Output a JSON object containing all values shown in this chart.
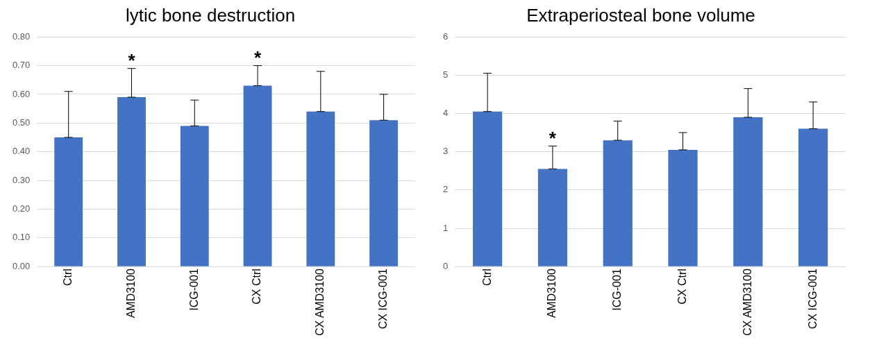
{
  "chart_data": [
    {
      "type": "bar",
      "title": "lytic bone destruction",
      "categories": [
        "Ctrl",
        "AMD3100",
        "ICG-001",
        "CX Ctrl",
        "CX AMD3100",
        "CX ICG-001"
      ],
      "values": [
        0.45,
        0.59,
        0.49,
        0.63,
        0.54,
        0.51
      ],
      "errors": [
        [
          0.45,
          0.61
        ],
        [
          0.59,
          0.69
        ],
        [
          0.49,
          0.58
        ],
        [
          0.63,
          0.7
        ],
        [
          0.54,
          0.68
        ],
        [
          0.51,
          0.6
        ]
      ],
      "color": "#4472c4",
      "ylim": [
        0,
        0.8
      ],
      "yticks": [
        {
          "value": 0,
          "label": "0.00"
        },
        {
          "value": 0.1,
          "label": "0.10"
        },
        {
          "value": 0.2,
          "label": "0.20"
        },
        {
          "value": 0.3,
          "label": "0.30"
        },
        {
          "value": 0.4,
          "label": "0.40"
        },
        {
          "value": 0.5,
          "label": "0.50"
        },
        {
          "value": 0.6,
          "label": "0.60"
        },
        {
          "value": 0.7,
          "label": "0.70"
        },
        {
          "value": 0.8,
          "label": "0.80"
        }
      ],
      "grid": "y",
      "annotations": [
        {
          "text": "*",
          "x": "AMD3100",
          "y": 0.69
        },
        {
          "text": "*",
          "x": "CX Ctrl",
          "y": 0.7
        }
      ]
    },
    {
      "type": "bar",
      "title": "Extraperiosteal bone volume",
      "categories": [
        "Ctrl",
        "AMD3100",
        "ICG-001",
        "CX Ctrl",
        "CX AMD3100",
        "CX ICG-001"
      ],
      "values": [
        4.05,
        2.55,
        3.3,
        3.05,
        3.9,
        3.6
      ],
      "errors": [
        [
          4.05,
          5.05
        ],
        [
          2.55,
          3.15
        ],
        [
          3.3,
          3.8
        ],
        [
          3.05,
          3.5
        ],
        [
          3.9,
          4.65
        ],
        [
          3.6,
          4.3
        ]
      ],
      "color": "#4472c4",
      "ylim": [
        0,
        6
      ],
      "yticks": [
        0,
        1,
        2,
        3,
        4,
        5,
        6
      ],
      "grid": "y",
      "annotations": [
        {
          "text": "*",
          "x": "AMD3100",
          "y": 3.15
        }
      ]
    }
  ]
}
